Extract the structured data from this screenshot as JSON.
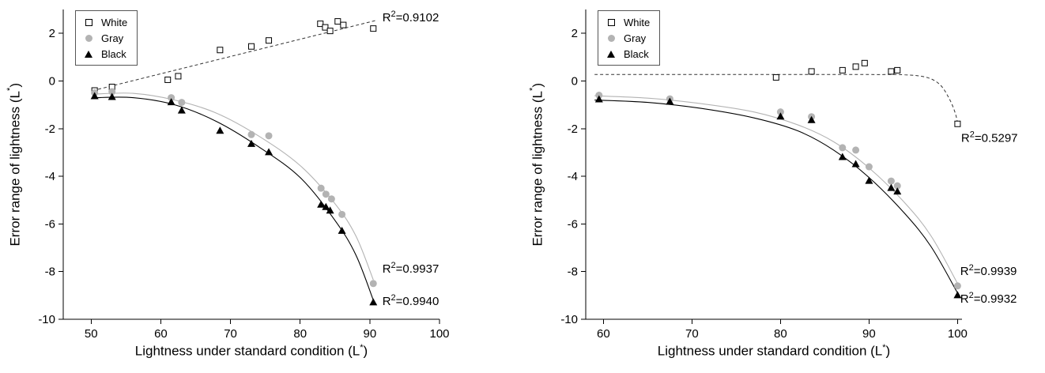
{
  "figure": {
    "background": "#ffffff",
    "axis_labels": {
      "x_main": "Lightness under standard condition (L",
      "y_main": "Error range of lightness (L",
      "sup": "*",
      "close": ")"
    },
    "colors": {
      "gray_series": "#b3b3b3",
      "black_series": "#000000",
      "white_series_stroke": "#000000",
      "axis": "#000000"
    }
  },
  "chart_data": [
    {
      "type": "scatter",
      "title": "",
      "xlabel": "Lightness under standard condition (L*)",
      "ylabel": "Error range of lightness (L*)",
      "xlim": [
        46,
        100
      ],
      "ylim": [
        -10,
        3
      ],
      "xticks": [
        50,
        60,
        70,
        80,
        90,
        100
      ],
      "yticks": [
        2,
        0,
        -2,
        -4,
        -6,
        -8,
        -10
      ],
      "grid": false,
      "legend_position": "top-left",
      "series": [
        {
          "name": "White",
          "marker": "open-square",
          "color": "#000000",
          "fit_style": "dashed",
          "r_squared": "0.9102",
          "points": [
            [
              50.5,
              -0.4
            ],
            [
              53,
              -0.25
            ],
            [
              61,
              0.05
            ],
            [
              62.5,
              0.2
            ],
            [
              68.5,
              1.3
            ],
            [
              73,
              1.45
            ],
            [
              75.5,
              1.7
            ],
            [
              82.9,
              2.4
            ],
            [
              83.6,
              2.25
            ],
            [
              84.3,
              2.1
            ],
            [
              85.4,
              2.5
            ],
            [
              86.2,
              2.35
            ],
            [
              90.5,
              2.2
            ]
          ],
          "fit_curve": [
            [
              51,
              -0.35
            ],
            [
              91,
              2.55
            ]
          ]
        },
        {
          "name": "Gray",
          "marker": "filled-circle",
          "color": "#b3b3b3",
          "fit_style": "solid",
          "r_squared": "0.9937",
          "points": [
            [
              50.5,
              -0.5
            ],
            [
              53,
              -0.45
            ],
            [
              61.5,
              -0.7
            ],
            [
              63,
              -0.9
            ],
            [
              73,
              -2.25
            ],
            [
              75.5,
              -2.3
            ],
            [
              83,
              -4.5
            ],
            [
              83.7,
              -4.75
            ],
            [
              84.5,
              -4.95
            ],
            [
              86,
              -5.6
            ],
            [
              90.5,
              -8.5
            ]
          ],
          "fit_curve": [
            [
              50.5,
              -0.55
            ],
            [
              56,
              -0.52
            ],
            [
              62,
              -0.8
            ],
            [
              68,
              -1.35
            ],
            [
              74,
              -2.3
            ],
            [
              80,
              -3.55
            ],
            [
              85,
              -5.15
            ],
            [
              88,
              -6.5
            ],
            [
              90.5,
              -8.35
            ]
          ]
        },
        {
          "name": "Black",
          "marker": "filled-triangle",
          "color": "#000000",
          "fit_style": "solid",
          "r_squared": "0.9940",
          "points": [
            [
              50.5,
              -0.65
            ],
            [
              53,
              -0.68
            ],
            [
              61.5,
              -0.9
            ],
            [
              63,
              -1.25
            ],
            [
              68.5,
              -2.1
            ],
            [
              73,
              -2.65
            ],
            [
              75.5,
              -3.0
            ],
            [
              83,
              -5.2
            ],
            [
              83.7,
              -5.3
            ],
            [
              84.3,
              -5.45
            ],
            [
              86,
              -6.3
            ],
            [
              90.5,
              -9.3
            ]
          ],
          "fit_curve": [
            [
              50.5,
              -0.7
            ],
            [
              56,
              -0.7
            ],
            [
              62,
              -1.0
            ],
            [
              68,
              -1.7
            ],
            [
              74,
              -2.75
            ],
            [
              80,
              -4.05
            ],
            [
              85,
              -5.85
            ],
            [
              88,
              -7.3
            ],
            [
              90.5,
              -9.2
            ]
          ]
        }
      ],
      "annotations": [
        {
          "label": "R²=0.9102",
          "x": 91.8,
          "y": 2.5
        },
        {
          "label": "R²=0.9937",
          "x": 91.8,
          "y": -8.05
        },
        {
          "label": "R²=0.9940",
          "x": 91.8,
          "y": -9.4
        }
      ]
    },
    {
      "type": "scatter",
      "title": "",
      "xlabel": "Lightness under standard condition (L*)",
      "ylabel": "Error range of lightness (L*)",
      "xlim": [
        58,
        100.5
      ],
      "ylim": [
        -10,
        3
      ],
      "xticks": [
        60,
        70,
        80,
        90,
        100
      ],
      "yticks": [
        2,
        0,
        -2,
        -4,
        -6,
        -8,
        -10
      ],
      "grid": false,
      "legend_position": "top-left",
      "series": [
        {
          "name": "White",
          "marker": "open-square",
          "color": "#000000",
          "fit_style": "dashed",
          "r_squared": "0.5297",
          "points": [
            [
              79.5,
              0.15
            ],
            [
              83.5,
              0.4
            ],
            [
              87,
              0.45
            ],
            [
              88.5,
              0.6
            ],
            [
              89.5,
              0.75
            ],
            [
              92.5,
              0.4
            ],
            [
              93.2,
              0.45
            ],
            [
              100,
              -1.8
            ]
          ],
          "fit_curve": [
            [
              59,
              0.27
            ],
            [
              75,
              0.27
            ],
            [
              90,
              0.27
            ],
            [
              94,
              0.26
            ],
            [
              96.5,
              0.15
            ],
            [
              98,
              -0.15
            ],
            [
              99,
              -0.7
            ],
            [
              99.7,
              -1.3
            ],
            [
              100,
              -1.75
            ]
          ]
        },
        {
          "name": "Gray",
          "marker": "filled-circle",
          "color": "#b3b3b3",
          "fit_style": "solid",
          "r_squared": "0.9939",
          "points": [
            [
              59.5,
              -0.6
            ],
            [
              67.5,
              -0.75
            ],
            [
              80,
              -1.3
            ],
            [
              83.5,
              -1.5
            ],
            [
              87,
              -2.8
            ],
            [
              88.5,
              -2.9
            ],
            [
              90,
              -3.6
            ],
            [
              92.5,
              -4.2
            ],
            [
              93.2,
              -4.4
            ],
            [
              100,
              -8.6
            ]
          ],
          "fit_curve": [
            [
              59,
              -0.62
            ],
            [
              65,
              -0.72
            ],
            [
              71,
              -0.95
            ],
            [
              77,
              -1.3
            ],
            [
              82,
              -1.85
            ],
            [
              86,
              -2.55
            ],
            [
              90,
              -3.65
            ],
            [
              94,
              -5.1
            ],
            [
              97,
              -6.5
            ],
            [
              100,
              -8.5
            ]
          ]
        },
        {
          "name": "Black",
          "marker": "filled-triangle",
          "color": "#000000",
          "fit_style": "solid",
          "r_squared": "0.9932",
          "points": [
            [
              59.5,
              -0.78
            ],
            [
              67.5,
              -0.88
            ],
            [
              80,
              -1.5
            ],
            [
              83.5,
              -1.65
            ],
            [
              87,
              -3.2
            ],
            [
              88.5,
              -3.5
            ],
            [
              90,
              -4.2
            ],
            [
              92.5,
              -4.5
            ],
            [
              93.2,
              -4.65
            ],
            [
              100,
              -9.0
            ]
          ],
          "fit_curve": [
            [
              59,
              -0.8
            ],
            [
              65,
              -0.9
            ],
            [
              71,
              -1.15
            ],
            [
              77,
              -1.55
            ],
            [
              82,
              -2.1
            ],
            [
              86,
              -2.9
            ],
            [
              90,
              -4.05
            ],
            [
              94,
              -5.55
            ],
            [
              97,
              -6.95
            ],
            [
              100,
              -8.9
            ]
          ]
        }
      ],
      "annotations": [
        {
          "label": "R²=0.5297",
          "x": 100.4,
          "y": -2.55
        },
        {
          "label": "R²=0.9939",
          "x": 100.3,
          "y": -8.15
        },
        {
          "label": "R²=0.9932",
          "x": 100.3,
          "y": -9.3
        }
      ]
    }
  ]
}
